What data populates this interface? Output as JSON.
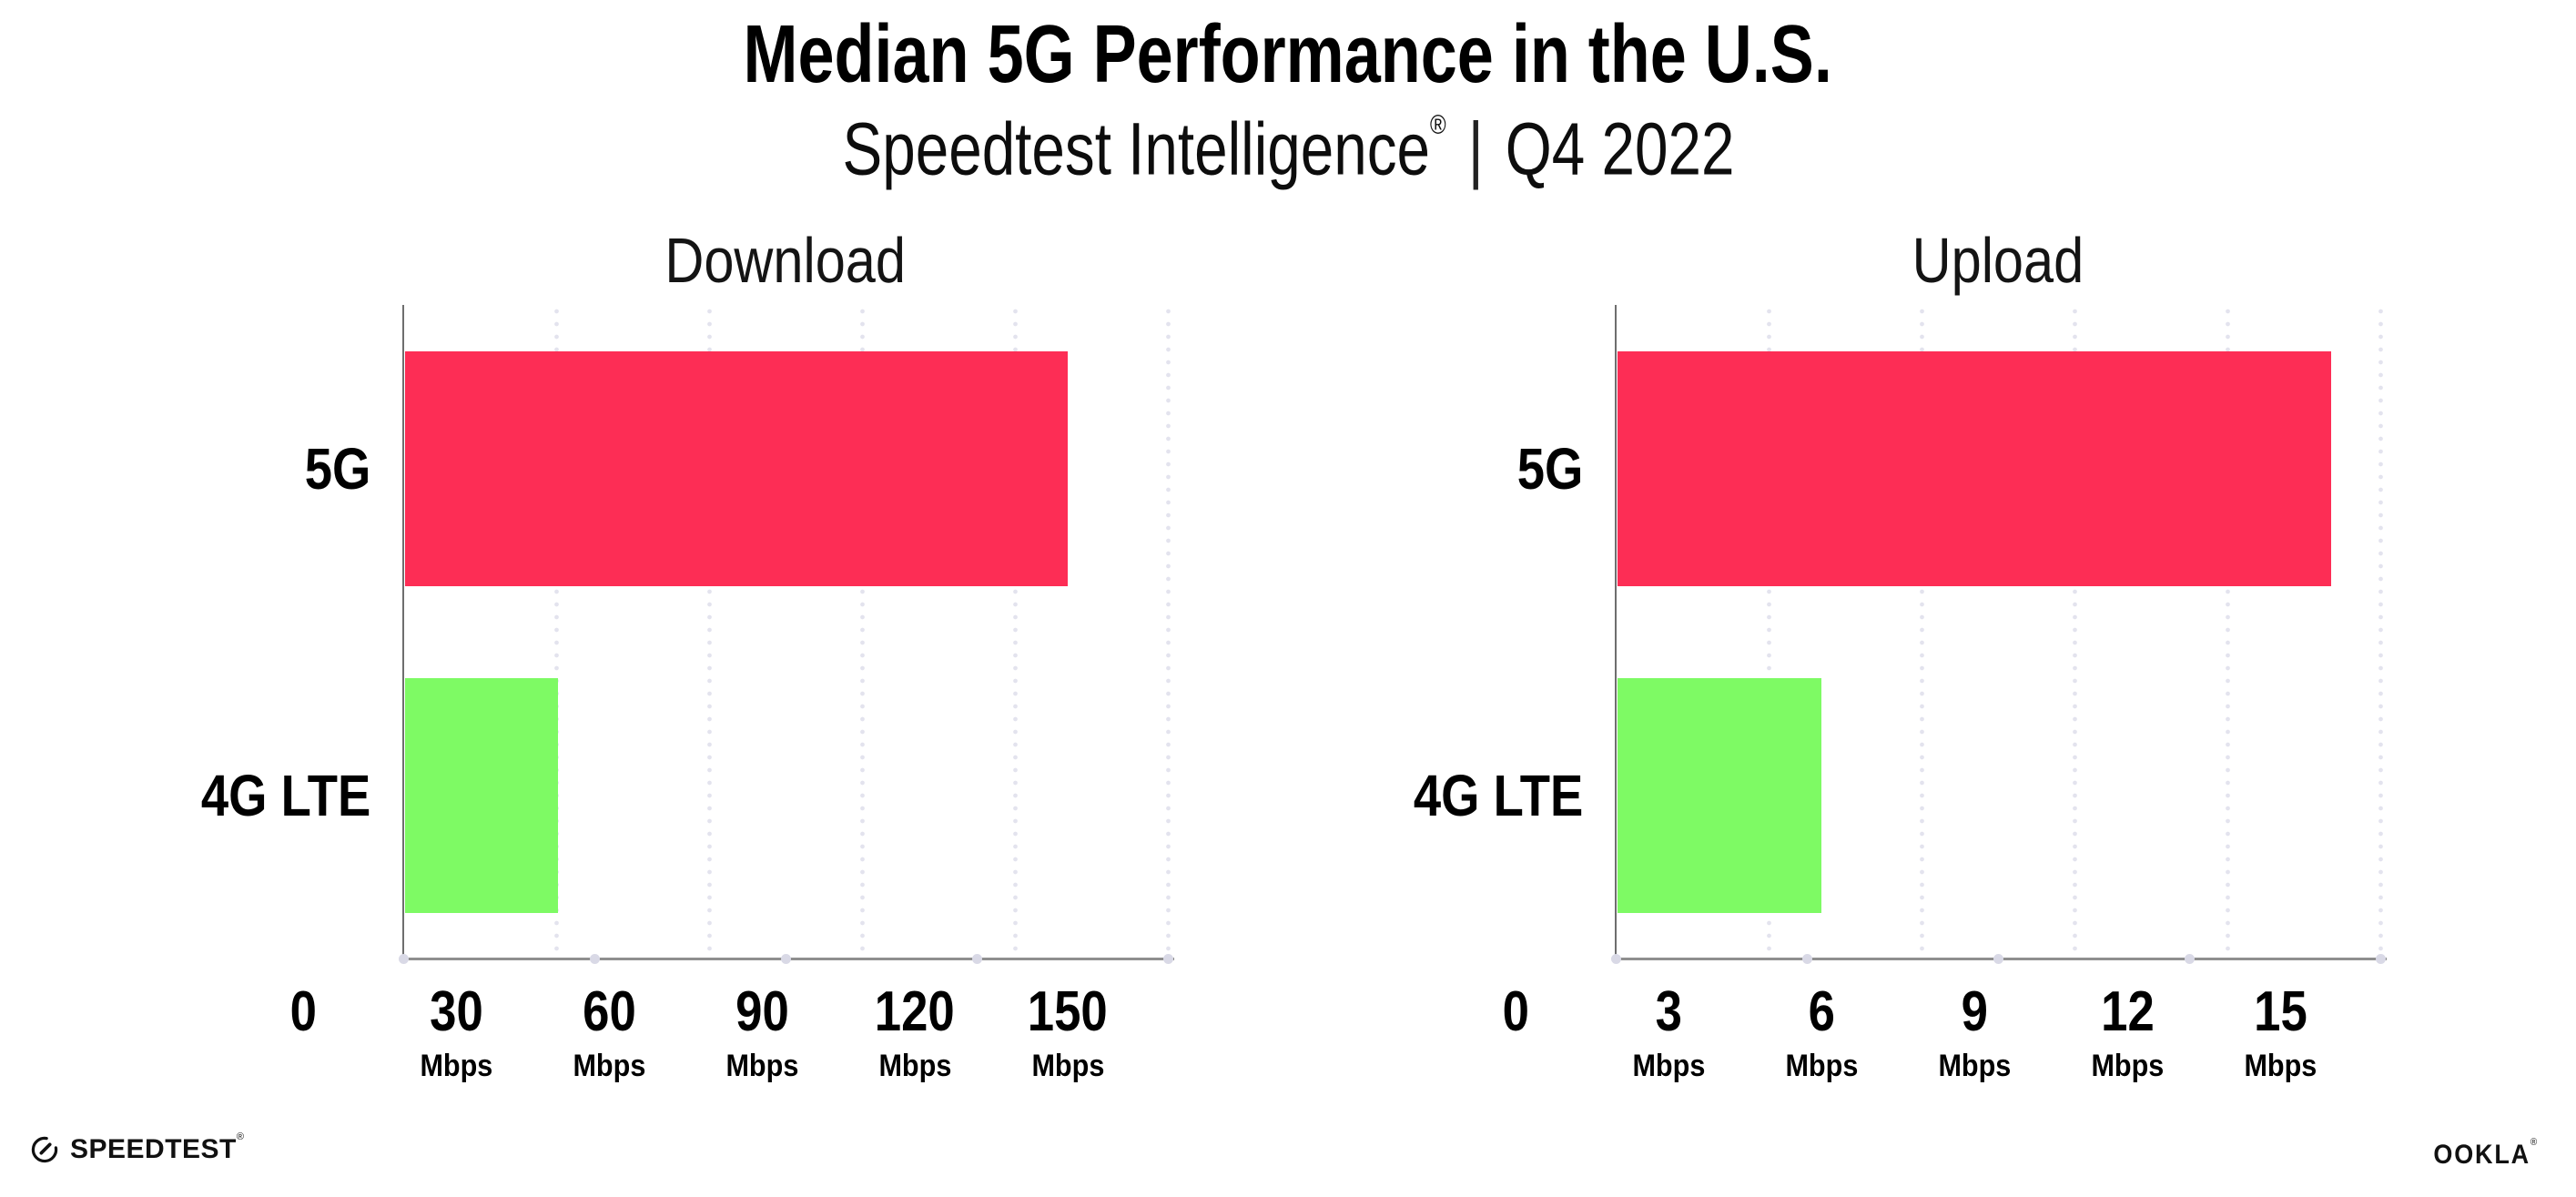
{
  "header": {
    "title": "Median 5G Performance in the U.S.",
    "subtitle": {
      "brand": "Speedtest Intelligence",
      "registered": "®",
      "divider": "|",
      "period": "Q4 2022"
    }
  },
  "chart_data": [
    {
      "type": "bar",
      "title": "Download",
      "orientation": "horizontal",
      "categories": [
        "5G",
        "4G LTE"
      ],
      "values": [
        130,
        30
      ],
      "unit": "Mbps",
      "axis": {
        "min": 0,
        "max": 150,
        "tick_step": 30
      },
      "ticks": [
        {
          "label": "0",
          "unit": ""
        },
        {
          "label": "30",
          "unit": "Mbps"
        },
        {
          "label": "60",
          "unit": "Mbps"
        },
        {
          "label": "90",
          "unit": "Mbps"
        },
        {
          "label": "120",
          "unit": "Mbps"
        },
        {
          "label": "150",
          "unit": "Mbps"
        }
      ],
      "bar_colors": [
        "#FD2D55",
        "#7EFA64"
      ],
      "grid": "dotted-vertical",
      "legend": "none"
    },
    {
      "type": "bar",
      "title": "Upload",
      "orientation": "horizontal",
      "categories": [
        "5G",
        "4G LTE"
      ],
      "values": [
        14,
        4
      ],
      "unit": "Mbps",
      "axis": {
        "min": 0,
        "max": 15,
        "tick_step": 3
      },
      "ticks": [
        {
          "label": "0",
          "unit": ""
        },
        {
          "label": "3",
          "unit": "Mbps"
        },
        {
          "label": "6",
          "unit": "Mbps"
        },
        {
          "label": "9",
          "unit": "Mbps"
        },
        {
          "label": "12",
          "unit": "Mbps"
        },
        {
          "label": "15",
          "unit": "Mbps"
        }
      ],
      "bar_colors": [
        "#FD2D55",
        "#7EFA64"
      ],
      "grid": "dotted-vertical",
      "legend": "none"
    }
  ],
  "colors": {
    "bar_5g": "#FD2D55",
    "bar_4g_lte": "#7EFA64",
    "gridline_dots": "#E3E3EE",
    "axis_line": "#8F8F8F",
    "axis_quarter_dots": "#D9D9E6",
    "text": "#000000",
    "background": "#FFFFFF"
  },
  "footer": {
    "speedtest_label": "SPEEDTEST",
    "speedtest_registered": "®",
    "ookla_label": "OOKLA",
    "ookla_registered": "®"
  }
}
